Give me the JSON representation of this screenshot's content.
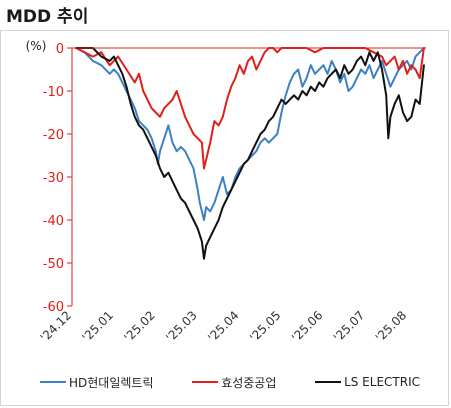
{
  "title": "MDD 추이",
  "colors": {
    "axis_red": "#e0201b",
    "grid": "#d9d9d9"
  },
  "chart_data": {
    "type": "line",
    "title": "MDD 추이",
    "ylabel": "(%)",
    "xlabel": "",
    "ylim": [
      -60,
      0
    ],
    "yticks": [
      0,
      -10,
      -20,
      -30,
      -40,
      -50,
      -60
    ],
    "xticks": [
      "'24.12",
      "'25.01",
      "'25.02",
      "'25.03",
      "'25.04",
      "'25.05",
      "'25.06",
      "'25.07",
      "'25.08"
    ],
    "x_range": [
      0,
      8.45
    ],
    "grid": false,
    "legend": "bottom",
    "series": [
      {
        "name": "HD현대일렉트릭",
        "color": "#3f7fc4",
        "points": [
          [
            0.1,
            0
          ],
          [
            0.3,
            -1
          ],
          [
            0.5,
            -3
          ],
          [
            0.7,
            -4
          ],
          [
            0.9,
            -6
          ],
          [
            1.0,
            -5
          ],
          [
            1.1,
            -6
          ],
          [
            1.2,
            -8
          ],
          [
            1.3,
            -10
          ],
          [
            1.4,
            -12
          ],
          [
            1.5,
            -14
          ],
          [
            1.6,
            -17
          ],
          [
            1.7,
            -18
          ],
          [
            1.8,
            -19
          ],
          [
            1.9,
            -21
          ],
          [
            2.0,
            -24
          ],
          [
            2.05,
            -27
          ],
          [
            2.1,
            -24
          ],
          [
            2.2,
            -21
          ],
          [
            2.3,
            -18
          ],
          [
            2.4,
            -22
          ],
          [
            2.5,
            -24
          ],
          [
            2.6,
            -23
          ],
          [
            2.7,
            -24
          ],
          [
            2.8,
            -26
          ],
          [
            2.9,
            -28
          ],
          [
            3.0,
            -33
          ],
          [
            3.05,
            -36
          ],
          [
            3.1,
            -38
          ],
          [
            3.15,
            -40
          ],
          [
            3.2,
            -37
          ],
          [
            3.3,
            -38
          ],
          [
            3.4,
            -36
          ],
          [
            3.5,
            -33
          ],
          [
            3.6,
            -30
          ],
          [
            3.7,
            -34
          ],
          [
            3.8,
            -33
          ],
          [
            3.9,
            -30
          ],
          [
            4.0,
            -28
          ],
          [
            4.1,
            -27
          ],
          [
            4.2,
            -26
          ],
          [
            4.3,
            -25
          ],
          [
            4.4,
            -24
          ],
          [
            4.5,
            -22
          ],
          [
            4.6,
            -21
          ],
          [
            4.7,
            -22
          ],
          [
            4.8,
            -21
          ],
          [
            4.9,
            -20
          ],
          [
            5.0,
            -15
          ],
          [
            5.1,
            -11
          ],
          [
            5.2,
            -8
          ],
          [
            5.3,
            -6
          ],
          [
            5.4,
            -5
          ],
          [
            5.5,
            -9
          ],
          [
            5.6,
            -7
          ],
          [
            5.7,
            -4
          ],
          [
            5.8,
            -6
          ],
          [
            5.9,
            -5
          ],
          [
            6.0,
            -4
          ],
          [
            6.1,
            -6
          ],
          [
            6.2,
            -3
          ],
          [
            6.3,
            -5
          ],
          [
            6.4,
            -8
          ],
          [
            6.5,
            -6
          ],
          [
            6.6,
            -10
          ],
          [
            6.7,
            -9
          ],
          [
            6.8,
            -7
          ],
          [
            6.9,
            -5
          ],
          [
            7.0,
            -6
          ],
          [
            7.1,
            -4
          ],
          [
            7.2,
            -7
          ],
          [
            7.3,
            -5
          ],
          [
            7.4,
            -3
          ],
          [
            7.5,
            -6
          ],
          [
            7.6,
            -9
          ],
          [
            7.7,
            -7
          ],
          [
            7.8,
            -5
          ],
          [
            7.9,
            -4
          ],
          [
            8.0,
            -3
          ],
          [
            8.1,
            -5
          ],
          [
            8.2,
            -2
          ],
          [
            8.3,
            -1
          ],
          [
            8.4,
            0
          ]
        ]
      },
      {
        "name": "효성중공업",
        "color": "#e0201b",
        "points": [
          [
            0.1,
            0
          ],
          [
            0.3,
            -1
          ],
          [
            0.5,
            -2
          ],
          [
            0.7,
            -1
          ],
          [
            0.9,
            -4
          ],
          [
            1.1,
            -2
          ],
          [
            1.3,
            -5
          ],
          [
            1.5,
            -8
          ],
          [
            1.6,
            -6
          ],
          [
            1.7,
            -10
          ],
          [
            1.8,
            -12
          ],
          [
            1.9,
            -14
          ],
          [
            2.0,
            -15
          ],
          [
            2.1,
            -16
          ],
          [
            2.2,
            -14
          ],
          [
            2.3,
            -13
          ],
          [
            2.4,
            -12
          ],
          [
            2.5,
            -10
          ],
          [
            2.6,
            -13
          ],
          [
            2.7,
            -16
          ],
          [
            2.8,
            -18
          ],
          [
            2.9,
            -20
          ],
          [
            3.0,
            -21
          ],
          [
            3.1,
            -22
          ],
          [
            3.15,
            -28
          ],
          [
            3.2,
            -26
          ],
          [
            3.3,
            -22
          ],
          [
            3.4,
            -17
          ],
          [
            3.5,
            -18
          ],
          [
            3.6,
            -16
          ],
          [
            3.7,
            -12
          ],
          [
            3.8,
            -9
          ],
          [
            3.9,
            -7
          ],
          [
            4.0,
            -4
          ],
          [
            4.1,
            -6
          ],
          [
            4.2,
            -3
          ],
          [
            4.3,
            -2
          ],
          [
            4.4,
            -5
          ],
          [
            4.5,
            -3
          ],
          [
            4.6,
            -1
          ],
          [
            4.7,
            0
          ],
          [
            4.8,
            0
          ],
          [
            4.9,
            -1
          ],
          [
            5.0,
            0
          ],
          [
            5.2,
            0
          ],
          [
            5.4,
            0
          ],
          [
            5.6,
            0
          ],
          [
            5.8,
            -1
          ],
          [
            6.0,
            0
          ],
          [
            6.2,
            0
          ],
          [
            6.4,
            0
          ],
          [
            6.6,
            0
          ],
          [
            6.8,
            0
          ],
          [
            7.0,
            0
          ],
          [
            7.2,
            -1
          ],
          [
            7.4,
            -2
          ],
          [
            7.5,
            -4
          ],
          [
            7.6,
            -3
          ],
          [
            7.7,
            -2
          ],
          [
            7.8,
            -5
          ],
          [
            7.9,
            -3
          ],
          [
            8.0,
            -6
          ],
          [
            8.1,
            -4
          ],
          [
            8.2,
            -5
          ],
          [
            8.3,
            -7
          ],
          [
            8.4,
            0
          ]
        ]
      },
      {
        "name": "LS ELECTRIC",
        "color": "#111111",
        "points": [
          [
            0.1,
            0
          ],
          [
            0.3,
            0
          ],
          [
            0.5,
            0
          ],
          [
            0.7,
            -2
          ],
          [
            0.9,
            -3
          ],
          [
            1.0,
            -2
          ],
          [
            1.1,
            -4
          ],
          [
            1.2,
            -6
          ],
          [
            1.3,
            -9
          ],
          [
            1.4,
            -13
          ],
          [
            1.5,
            -16
          ],
          [
            1.6,
            -18
          ],
          [
            1.7,
            -19
          ],
          [
            1.8,
            -21
          ],
          [
            1.9,
            -23
          ],
          [
            2.0,
            -25
          ],
          [
            2.1,
            -28
          ],
          [
            2.2,
            -30
          ],
          [
            2.3,
            -29
          ],
          [
            2.4,
            -31
          ],
          [
            2.5,
            -33
          ],
          [
            2.6,
            -35
          ],
          [
            2.7,
            -36
          ],
          [
            2.8,
            -38
          ],
          [
            2.9,
            -40
          ],
          [
            3.0,
            -42
          ],
          [
            3.1,
            -45
          ],
          [
            3.15,
            -49
          ],
          [
            3.2,
            -46
          ],
          [
            3.3,
            -44
          ],
          [
            3.4,
            -42
          ],
          [
            3.5,
            -40
          ],
          [
            3.6,
            -37
          ],
          [
            3.7,
            -35
          ],
          [
            3.8,
            -33
          ],
          [
            3.9,
            -31
          ],
          [
            4.0,
            -29
          ],
          [
            4.1,
            -27
          ],
          [
            4.2,
            -26
          ],
          [
            4.3,
            -24
          ],
          [
            4.4,
            -22
          ],
          [
            4.5,
            -20
          ],
          [
            4.6,
            -19
          ],
          [
            4.7,
            -17
          ],
          [
            4.8,
            -16
          ],
          [
            4.9,
            -14
          ],
          [
            5.0,
            -12
          ],
          [
            5.1,
            -13
          ],
          [
            5.2,
            -12
          ],
          [
            5.3,
            -11
          ],
          [
            5.4,
            -12
          ],
          [
            5.5,
            -10
          ],
          [
            5.6,
            -11
          ],
          [
            5.7,
            -9
          ],
          [
            5.8,
            -10
          ],
          [
            5.9,
            -8
          ],
          [
            6.0,
            -9
          ],
          [
            6.1,
            -7
          ],
          [
            6.2,
            -6
          ],
          [
            6.3,
            -5
          ],
          [
            6.4,
            -7
          ],
          [
            6.5,
            -4
          ],
          [
            6.6,
            -6
          ],
          [
            6.7,
            -5
          ],
          [
            6.8,
            -3
          ],
          [
            6.9,
            -2
          ],
          [
            7.0,
            -4
          ],
          [
            7.1,
            -1
          ],
          [
            7.2,
            -3
          ],
          [
            7.3,
            -1
          ],
          [
            7.4,
            -5
          ],
          [
            7.5,
            -11
          ],
          [
            7.55,
            -21
          ],
          [
            7.6,
            -16
          ],
          [
            7.7,
            -13
          ],
          [
            7.8,
            -11
          ],
          [
            7.9,
            -15
          ],
          [
            8.0,
            -17
          ],
          [
            8.1,
            -16
          ],
          [
            8.2,
            -12
          ],
          [
            8.3,
            -13
          ],
          [
            8.4,
            -4
          ]
        ]
      }
    ]
  }
}
